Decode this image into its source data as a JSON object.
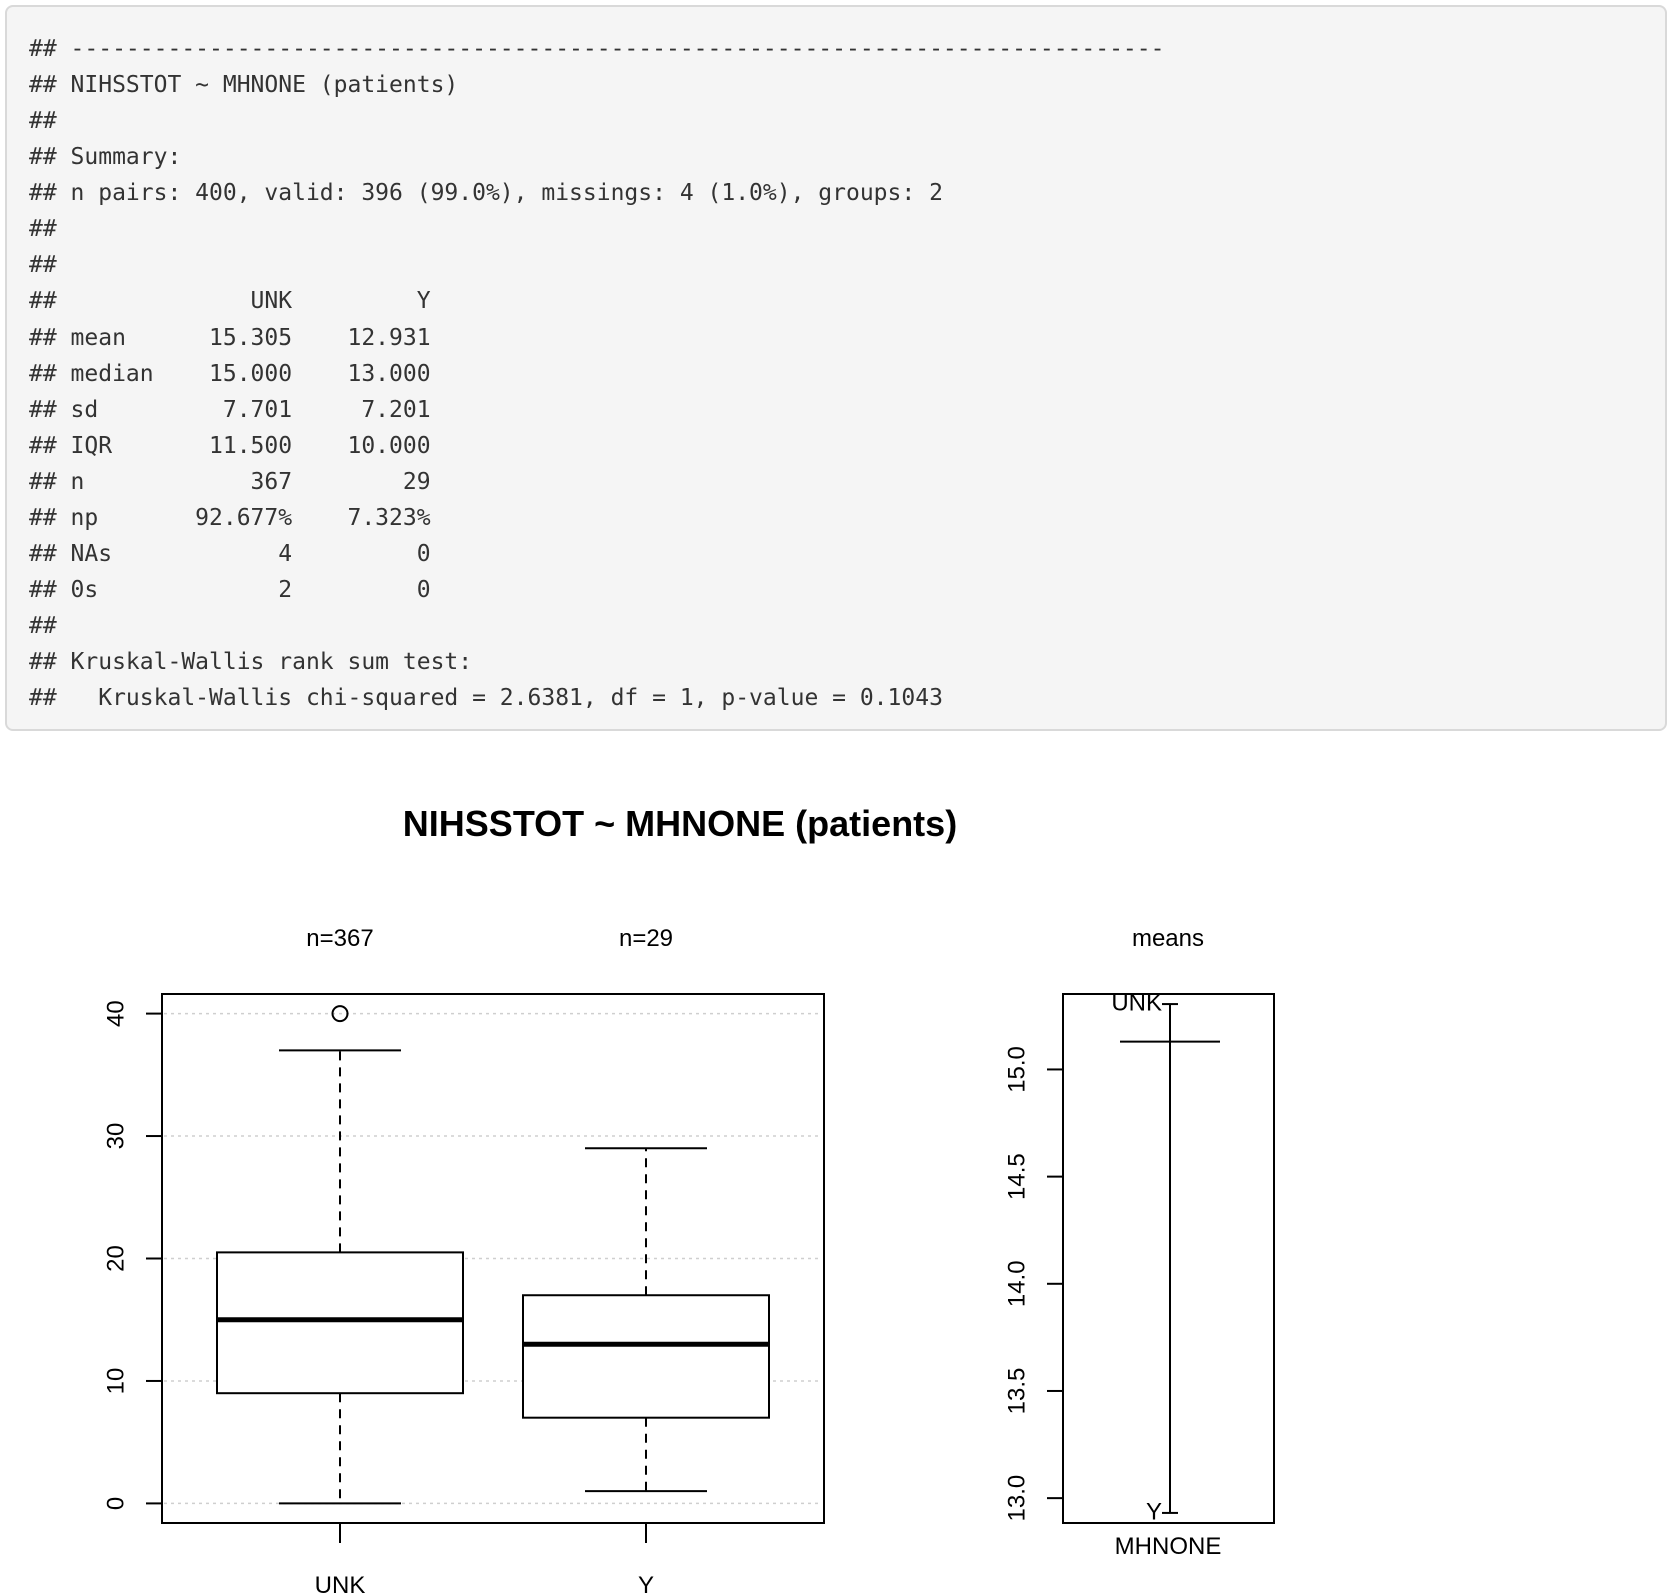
{
  "console": {
    "lines": [
      "## -------------------------------------------------------------------------------",
      "## NIHSSTOT ~ MHNONE (patients)",
      "##",
      "## Summary:",
      "## n pairs: 400, valid: 396 (99.0%), missings: 4 (1.0%), groups: 2",
      "##",
      "##",
      "##              UNK         Y",
      "## mean      15.305    12.931",
      "## median    15.000    13.000",
      "## sd         7.701     7.201",
      "## IQR       11.500    10.000",
      "## n            367        29",
      "## np       92.677%    7.323%",
      "## NAs            4         0",
      "## 0s             2         0",
      "##",
      "## Kruskal-Wallis rank sum test:",
      "##   Kruskal-Wallis chi-squared = 2.6381, df = 1, p-value = 0.1043"
    ]
  },
  "chart_data": [
    {
      "type": "boxplot",
      "title": "NIHSSTOT ~ MHNONE (patients)",
      "categories": [
        "UNK",
        "Y"
      ],
      "group_counts": [
        "n=367",
        "n=29"
      ],
      "boxes": [
        {
          "category": "UNK",
          "whisker_low": 0,
          "q1": 9,
          "median": 15,
          "q3": 20.5,
          "whisker_high": 37,
          "outliers": [
            40
          ]
        },
        {
          "category": "Y",
          "whisker_low": 1,
          "q1": 7,
          "median": 13,
          "q3": 17,
          "whisker_high": 29,
          "outliers": []
        }
      ],
      "yticks": [
        0,
        10,
        20,
        30,
        40
      ],
      "ylim": [
        -1.6,
        41.6
      ],
      "grid": true,
      "grid_style": "dotted-horizontal"
    },
    {
      "type": "means",
      "title": "means",
      "xlabel": "MHNONE",
      "points": [
        {
          "label": "UNK",
          "value": 15.305
        },
        {
          "label": "Y",
          "value": 12.931
        }
      ],
      "overall_mean": 15.13,
      "yticks": [
        "13.0",
        "13.5",
        "14.0",
        "14.5",
        "15.0"
      ],
      "ylim": [
        12.884,
        15.352
      ]
    }
  ]
}
